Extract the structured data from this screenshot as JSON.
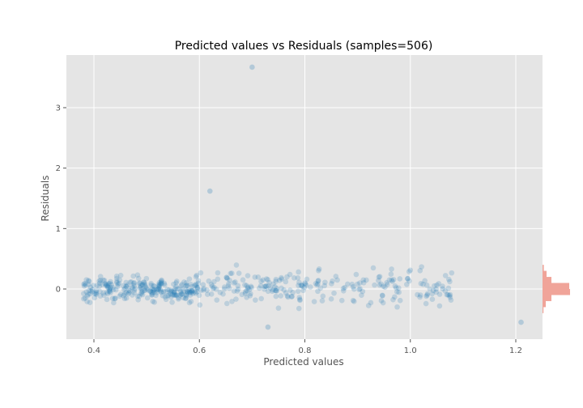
{
  "chart_data": {
    "type": "scatter",
    "title": "Predicted values vs Residuals (samples=506)",
    "xlabel": "Predicted values",
    "ylabel": "Residuals",
    "xlim": [
      0.35,
      1.25
    ],
    "ylim": [
      -0.85,
      3.9
    ],
    "xticks": [
      0.4,
      0.6,
      0.8,
      1.0,
      1.2
    ],
    "yticks": [
      0,
      1,
      2,
      3
    ],
    "grid": true,
    "background": "#e5e5e5",
    "point_color": "#1f77b4",
    "hist_color": "#e24a33",
    "outliers": [
      {
        "x": 0.7,
        "y": 3.67
      },
      {
        "x": 0.62,
        "y": 1.62
      },
      {
        "x": 0.73,
        "y": -0.63
      },
      {
        "x": 1.21,
        "y": -0.55
      }
    ],
    "cluster_bands": [
      {
        "x_min": 0.38,
        "x_max": 0.6,
        "count": 260,
        "y_center": 0.0,
        "y_spread": 0.1
      },
      {
        "x_min": 0.6,
        "x_max": 0.8,
        "count": 120,
        "y_center": 0.03,
        "y_spread": 0.14
      },
      {
        "x_min": 0.8,
        "x_max": 1.08,
        "count": 122,
        "y_center": 0.02,
        "y_spread": 0.15
      }
    ],
    "residual_histogram": {
      "bins": [
        {
          "from": -0.4,
          "to": -0.3,
          "count": 6
        },
        {
          "from": -0.3,
          "to": -0.2,
          "count": 20
        },
        {
          "from": -0.2,
          "to": -0.1,
          "count": 55
        },
        {
          "from": -0.1,
          "to": 0.0,
          "count": 170
        },
        {
          "from": 0.0,
          "to": 0.1,
          "count": 165
        },
        {
          "from": 0.1,
          "to": 0.2,
          "count": 55
        },
        {
          "from": 0.2,
          "to": 0.3,
          "count": 25
        },
        {
          "from": 0.3,
          "to": 0.4,
          "count": 8
        }
      ]
    }
  }
}
